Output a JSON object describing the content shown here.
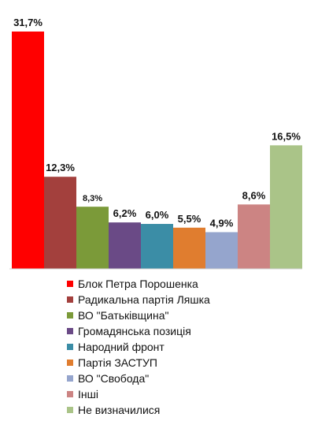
{
  "chart_data": {
    "type": "bar",
    "title": "",
    "xlabel": "",
    "ylabel": "",
    "ylim": [
      0,
      31.7
    ],
    "grid": false,
    "legend_position": "bottom",
    "categories": [
      "Блок Петра  Порошенка",
      "Радикальна партія Ляшка",
      "ВО \"Батьківщина\"",
      "Громадянська позиція",
      "Народний фронт",
      "Партія ЗАСТУП",
      "ВО \"Свобода\"",
      "Інші",
      "Не визначилися"
    ],
    "values": [
      31.7,
      12.3,
      8.3,
      6.2,
      6.0,
      5.5,
      4.9,
      8.6,
      16.5
    ],
    "value_labels": [
      "31,7%",
      "12,3%",
      "8,3%",
      "6,2%",
      "6,0%",
      "5,5%",
      "4,9%",
      "8,6%",
      "16,5%"
    ],
    "colors": [
      "#ff0000",
      "#a3403d",
      "#7b9a39",
      "#6a4a86",
      "#3b8da6",
      "#e07d2f",
      "#95a5cd",
      "#cc8483",
      "#aac488"
    ]
  }
}
